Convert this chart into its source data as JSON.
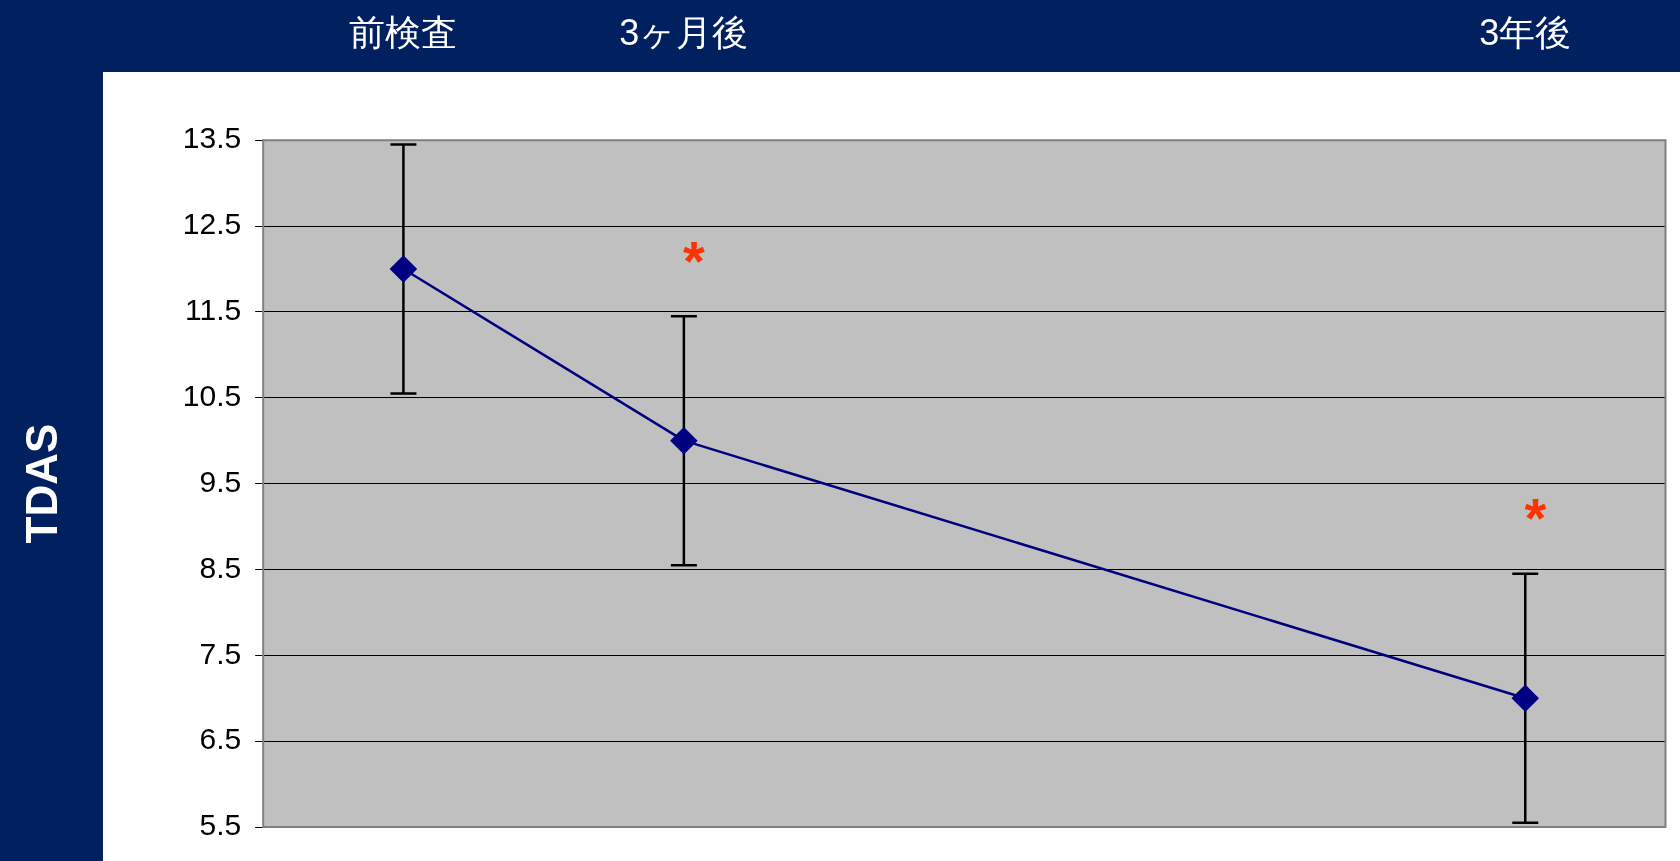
{
  "chart_data": {
    "type": "line",
    "ylabel": "TDAS",
    "categories": [
      "前検査",
      "3ヶ月後",
      null,
      null,
      "3年後"
    ],
    "series": [
      {
        "color": "#000080",
        "values": [
          12.0,
          10.0,
          null,
          null,
          7.0
        ],
        "errors": [
          1.45,
          1.45,
          null,
          null,
          1.45
        ]
      }
    ],
    "ylim": [
      5.5,
      13.5
    ],
    "yticks": [
      5.5,
      6.5,
      7.5,
      8.5,
      9.5,
      10.5,
      11.5,
      12.5,
      13.5
    ],
    "grid": "y",
    "legend": false,
    "marker": "diamond",
    "line_style": "solid",
    "annotations": [
      "*",
      "*"
    ]
  }
}
